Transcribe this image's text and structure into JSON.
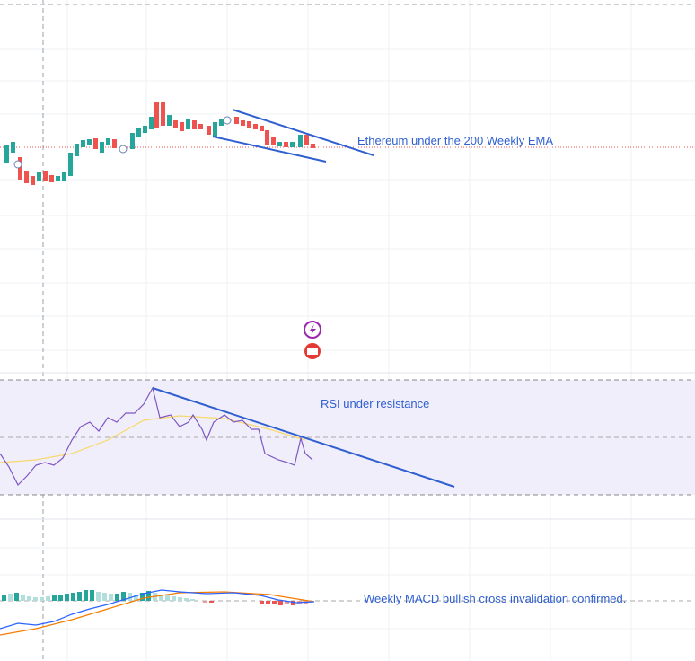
{
  "price_pane": {
    "annotation": "Ethereum under the 200 Weekly EMA"
  },
  "rsi_pane": {
    "annotation": "RSI under resistance"
  },
  "macd_pane": {
    "annotation": "Weekly MACD bullish cross invalidation confirmed."
  }
}
